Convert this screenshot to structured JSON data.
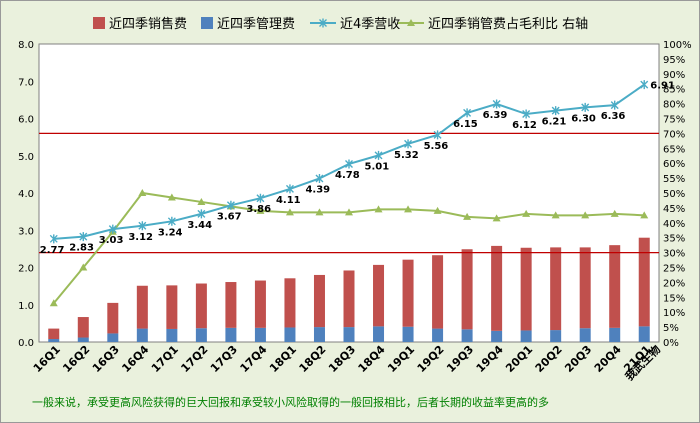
{
  "chart_data": {
    "type": "bar",
    "categories": [
      "16Q1",
      "16Q2",
      "16Q3",
      "16Q4",
      "17Q1",
      "17Q2",
      "17Q3",
      "17Q4",
      "18Q1",
      "18Q2",
      "18Q3",
      "18Q4",
      "19Q1",
      "19Q2",
      "19Q3",
      "19Q4",
      "20Q1",
      "20Q2",
      "20Q3",
      "20Q4",
      "21Q1"
    ],
    "company_label": "我武生物",
    "series": [
      {
        "name": "近四季销售费",
        "kind": "stacked-bar",
        "axis": "left",
        "color": "#c0504d",
        "values": [
          0.28,
          0.55,
          0.82,
          1.15,
          1.17,
          1.2,
          1.23,
          1.27,
          1.32,
          1.4,
          1.52,
          1.65,
          1.8,
          1.97,
          2.15,
          2.28,
          2.22,
          2.22,
          2.17,
          2.22,
          2.38
        ]
      },
      {
        "name": "近四季管理费",
        "kind": "stacked-bar",
        "axis": "left",
        "color": "#4f81bd",
        "values": [
          0.08,
          0.12,
          0.23,
          0.36,
          0.35,
          0.37,
          0.38,
          0.38,
          0.39,
          0.4,
          0.4,
          0.42,
          0.41,
          0.36,
          0.34,
          0.3,
          0.31,
          0.32,
          0.37,
          0.38,
          0.42
        ]
      },
      {
        "name": "近4季营收",
        "kind": "line",
        "axis": "left",
        "color": "#4bacc6",
        "values": [
          2.77,
          2.83,
          3.03,
          3.12,
          3.24,
          3.44,
          3.67,
          3.86,
          4.11,
          4.39,
          4.78,
          5.01,
          5.32,
          5.56,
          6.15,
          6.39,
          6.12,
          6.21,
          6.3,
          6.36,
          6.91
        ],
        "labels": [
          "2.77",
          "2.83",
          "3.03",
          "3.12",
          "3.24",
          "3.44",
          "3.67",
          "3.86",
          "4.11",
          "4.39",
          "4.78",
          "5.01",
          "5.32",
          "5.56",
          "6.15",
          "6.39",
          "6.12",
          "6.21",
          "6.30",
          "6.36",
          "6.91"
        ]
      },
      {
        "name": "近四季销管费占毛利比 右轴",
        "kind": "line",
        "axis": "right",
        "color": "#9bbb59",
        "values": [
          0.13,
          0.25,
          0.37,
          0.5,
          0.485,
          0.47,
          0.455,
          0.44,
          0.435,
          0.435,
          0.435,
          0.445,
          0.445,
          0.44,
          0.42,
          0.415,
          0.43,
          0.425,
          0.425,
          0.43,
          0.425
        ]
      }
    ],
    "reference_lines": [
      {
        "axis": "left",
        "value": 5.6,
        "color": "#c00000"
      },
      {
        "axis": "left",
        "value": 2.4,
        "color": "#c00000"
      }
    ],
    "ylim": [
      0,
      8
    ],
    "yticks": [
      "0.0",
      "1.0",
      "2.0",
      "3.0",
      "4.0",
      "5.0",
      "6.0",
      "7.0",
      "8.0"
    ],
    "y2lim": [
      0,
      1
    ],
    "y2ticks": [
      "0%",
      "5%",
      "10%",
      "15%",
      "20%",
      "25%",
      "30%",
      "35%",
      "40%",
      "45%",
      "50%",
      "55%",
      "60%",
      "65%",
      "70%",
      "75%",
      "80%",
      "85%",
      "90%",
      "95%",
      "100%"
    ],
    "legend_position": "top",
    "grid": false
  },
  "footnote": "一般来说，承受更高风险获得的巨大回报和承受较小风险取得的一般回报相比，后者长期的收益率更高的多"
}
